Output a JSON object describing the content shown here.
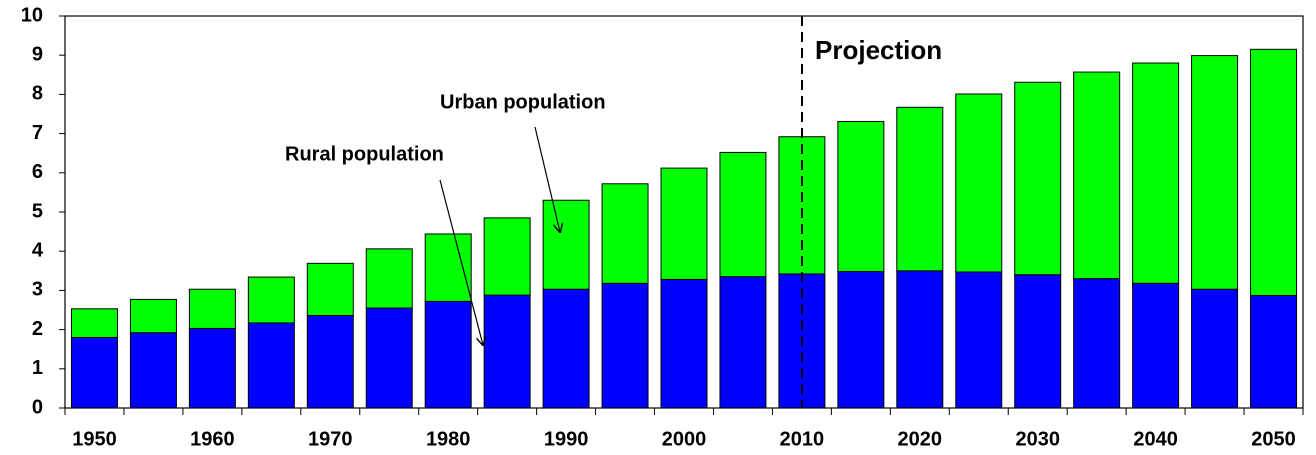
{
  "chart_data": {
    "type": "bar",
    "stacked": true,
    "categories": [
      "1950",
      null,
      "1960",
      null,
      "1970",
      null,
      "1980",
      null,
      "1990",
      null,
      "2000",
      null,
      "2010",
      null,
      "2020",
      null,
      "2030",
      null,
      "2040",
      null,
      "2050"
    ],
    "series": [
      {
        "name": "Rural population",
        "color": "#0000ff",
        "values": [
          1.8,
          1.92,
          2.03,
          2.17,
          2.36,
          2.55,
          2.72,
          2.88,
          3.03,
          3.18,
          3.28,
          3.35,
          3.42,
          3.48,
          3.5,
          3.47,
          3.4,
          3.3,
          3.18,
          3.03,
          2.87
        ]
      },
      {
        "name": "Urban population",
        "color": "#00ff00",
        "values": [
          0.73,
          0.85,
          1.0,
          1.17,
          1.33,
          1.51,
          1.72,
          1.97,
          2.27,
          2.54,
          2.84,
          3.17,
          3.5,
          3.83,
          4.17,
          4.54,
          4.91,
          5.27,
          5.62,
          5.96,
          6.28
        ]
      }
    ],
    "annotations": [
      "Projection"
    ],
    "ylim": [
      0,
      10
    ],
    "yticks": [
      0,
      1,
      2,
      3,
      4,
      5,
      6,
      7,
      8,
      9,
      10
    ]
  }
}
